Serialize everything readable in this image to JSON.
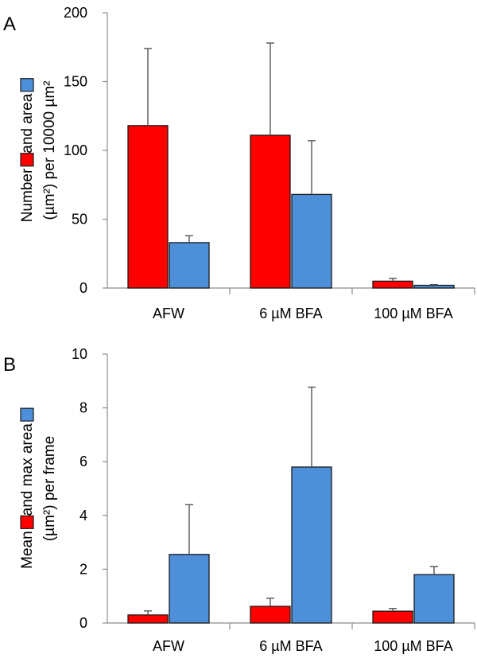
{
  "chart_data": [
    {
      "type": "bar",
      "panel_label": "A",
      "categories": [
        "AFW",
        "6 µM BFA",
        "100 µM BFA"
      ],
      "series": [
        {
          "color": "#ff0000",
          "values": [
            118,
            111,
            5
          ],
          "errors": [
            56,
            67,
            2
          ]
        },
        {
          "color": "#4e8fd9",
          "values": [
            33,
            68,
            2
          ],
          "errors": [
            5,
            39,
            0.5
          ]
        }
      ],
      "ylabel_line1_parts": [
        "Number",
        " and area "
      ],
      "ylabel_line2": "(µm²) per 10000 µm²",
      "ylim": [
        0,
        200
      ],
      "yticks": [
        "0",
        "50",
        "100",
        "150",
        "200"
      ],
      "ytick_values": [
        0,
        50,
        100,
        150,
        200
      ],
      "grid": false
    },
    {
      "type": "bar",
      "panel_label": "B",
      "categories": [
        "AFW",
        "6 µM BFA",
        "100 µM BFA"
      ],
      "series": [
        {
          "color": "#ff0000",
          "values": [
            0.3,
            0.62,
            0.44
          ],
          "errors": [
            0.15,
            0.3,
            0.1
          ]
        },
        {
          "color": "#4e8fd9",
          "values": [
            2.55,
            5.8,
            1.8
          ],
          "errors": [
            1.85,
            2.97,
            0.3
          ]
        }
      ],
      "ylabel_line1_parts": [
        "Mean",
        " and max area "
      ],
      "ylabel_line2": "(µm²) per frame",
      "ylim": [
        0,
        10
      ],
      "yticks": [
        "0",
        "2",
        "4",
        "6",
        "8",
        "10"
      ],
      "ytick_values": [
        0,
        2,
        4,
        6,
        8,
        10
      ],
      "grid": false
    }
  ]
}
